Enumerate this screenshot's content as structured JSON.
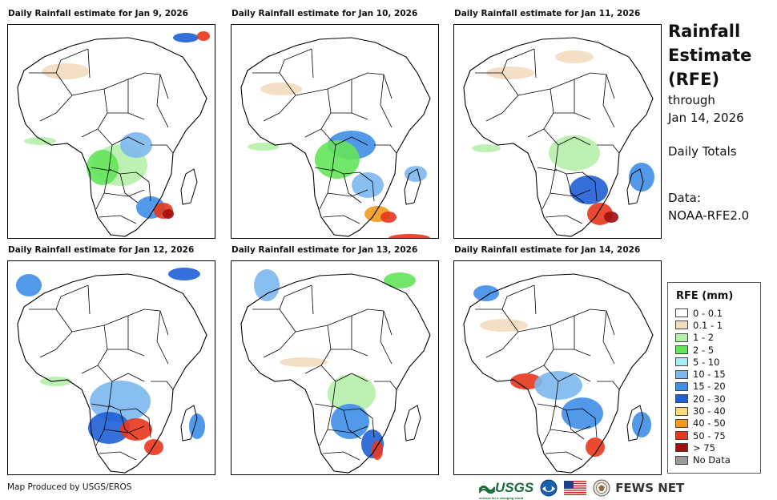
{
  "panels": [
    {
      "title": "Daily Rainfall estimate for Jan 9, 2026"
    },
    {
      "title": "Daily Rainfall estimate for Jan 10, 2026"
    },
    {
      "title": "Daily Rainfall estimate for Jan 11, 2026"
    },
    {
      "title": "Daily Rainfall estimate for Jan 12, 2026"
    },
    {
      "title": "Daily Rainfall estimate for Jan 13, 2026"
    },
    {
      "title": "Daily Rainfall estimate for Jan 14, 2026"
    }
  ],
  "side": {
    "title_line1": "Rainfall",
    "title_line2": "Estimate",
    "title_line3": "(RFE)",
    "through": "through",
    "date": "Jan 14, 2026",
    "totals": "Daily Totals",
    "data_label": "Data:",
    "data_source": "NOAA-RFE2.0"
  },
  "legend": {
    "title": "RFE (mm)",
    "items": [
      {
        "label": "0 - 0.1",
        "color": "#ffffff"
      },
      {
        "label": "0.1 - 1",
        "color": "#f2dcc0"
      },
      {
        "label": "1 - 2",
        "color": "#b5f0a8"
      },
      {
        "label": "2 - 5",
        "color": "#63e45a"
      },
      {
        "label": "5 - 10",
        "color": "#a8ecf5"
      },
      {
        "label": "10 - 15",
        "color": "#7cb7ee"
      },
      {
        "label": "15 - 20",
        "color": "#3f8ee8"
      },
      {
        "label": "20 - 30",
        "color": "#1e5fd6"
      },
      {
        "label": "30 - 40",
        "color": "#f7d97a"
      },
      {
        "label": "40 - 50",
        "color": "#f39a1c"
      },
      {
        "label": "50 - 75",
        "color": "#e8361c"
      },
      {
        "label": "> 75",
        "color": "#a01010"
      },
      {
        "label": "No Data",
        "color": "#9a9a9a"
      }
    ]
  },
  "footer": {
    "credit": "Map Produced by USGS/EROS",
    "usgs": "USGS",
    "usgs_tagline": "science for a changing world",
    "fews": "FEWS NET"
  }
}
